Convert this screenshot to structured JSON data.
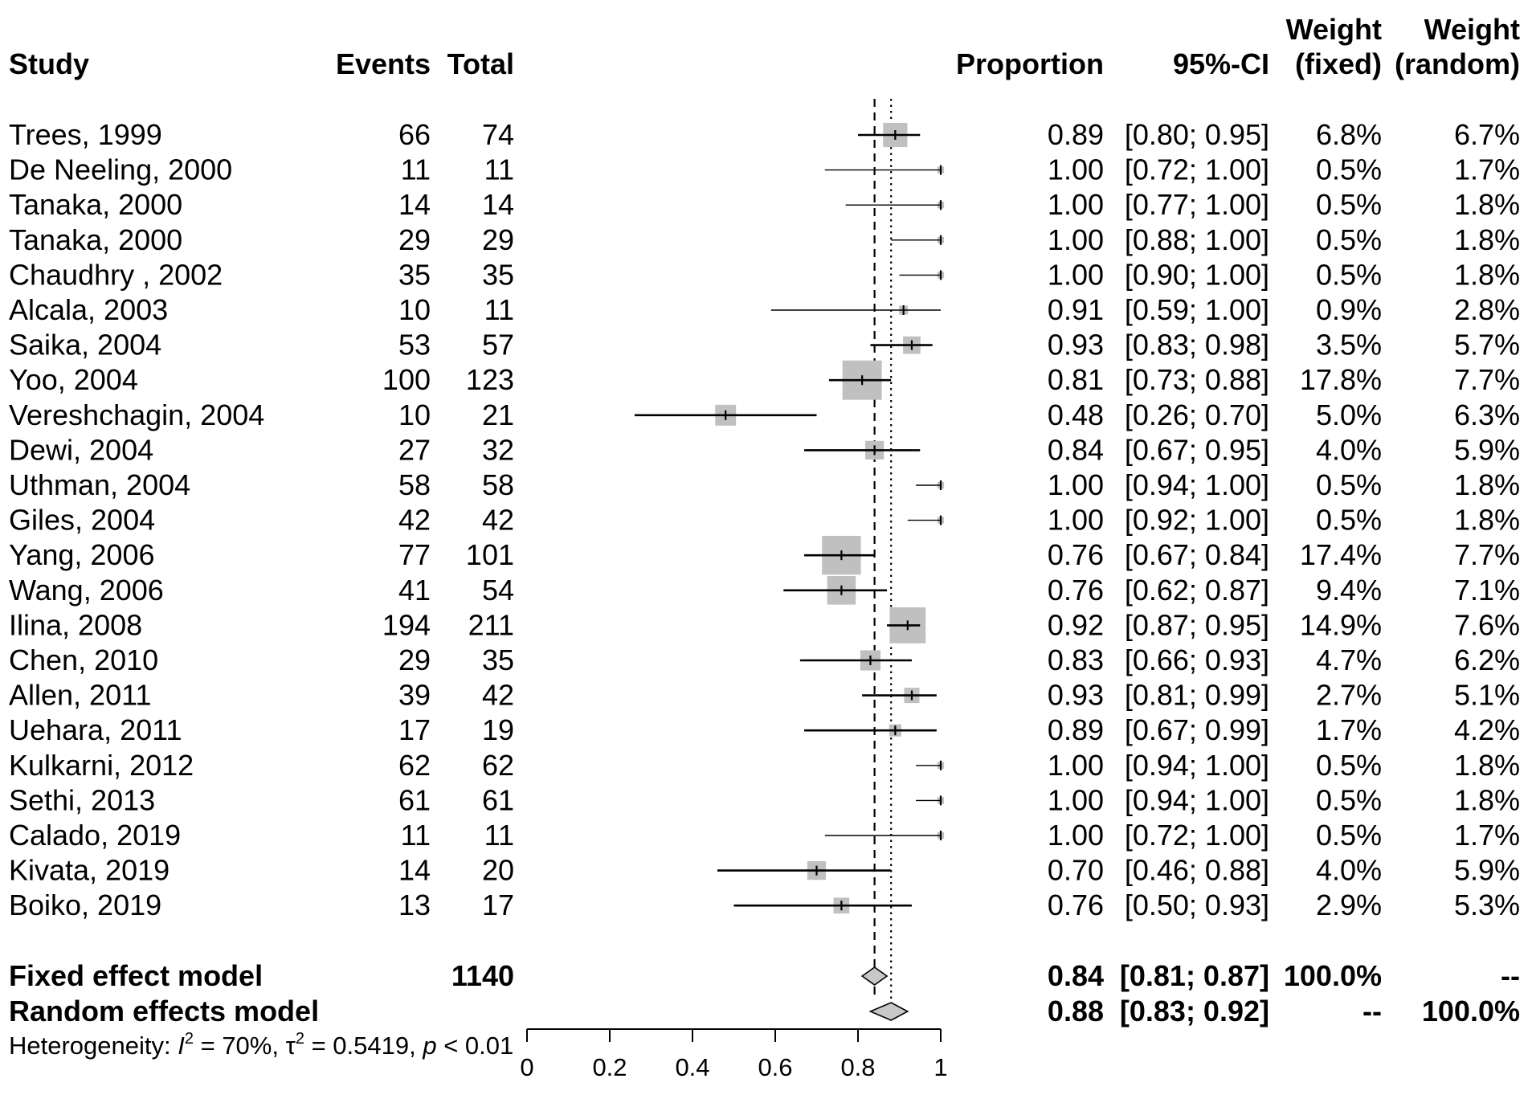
{
  "chart_data": {
    "type": "forest",
    "headers": {
      "study": "Study",
      "events": "Events",
      "total": "Total",
      "proportion": "Proportion",
      "ci": "95%-CI",
      "weight_fixed": [
        "Weight",
        "(fixed)"
      ],
      "weight_random": [
        "Weight",
        "(random)"
      ]
    },
    "studies": [
      {
        "study": "Trees, 1999",
        "events": 66,
        "total": 74,
        "proportion": 0.89,
        "ci_low": 0.8,
        "ci_high": 0.95,
        "prop_text": "0.89",
        "ci_text": "[0.80; 0.95]",
        "w_fixed": "6.8%",
        "w_random": "6.7%"
      },
      {
        "study": "De Neeling, 2000",
        "events": 11,
        "total": 11,
        "proportion": 1.0,
        "ci_low": 0.72,
        "ci_high": 1.0,
        "prop_text": "1.00",
        "ci_text": "[0.72; 1.00]",
        "w_fixed": "0.5%",
        "w_random": "1.7%"
      },
      {
        "study": "Tanaka, 2000",
        "events": 14,
        "total": 14,
        "proportion": 1.0,
        "ci_low": 0.77,
        "ci_high": 1.0,
        "prop_text": "1.00",
        "ci_text": "[0.77; 1.00]",
        "w_fixed": "0.5%",
        "w_random": "1.8%"
      },
      {
        "study": "Tanaka, 2000",
        "events": 29,
        "total": 29,
        "proportion": 1.0,
        "ci_low": 0.88,
        "ci_high": 1.0,
        "prop_text": "1.00",
        "ci_text": "[0.88; 1.00]",
        "w_fixed": "0.5%",
        "w_random": "1.8%"
      },
      {
        "study": "Chaudhry , 2002",
        "events": 35,
        "total": 35,
        "proportion": 1.0,
        "ci_low": 0.9,
        "ci_high": 1.0,
        "prop_text": "1.00",
        "ci_text": "[0.90; 1.00]",
        "w_fixed": "0.5%",
        "w_random": "1.8%"
      },
      {
        "study": "Alcala, 2003",
        "events": 10,
        "total": 11,
        "proportion": 0.91,
        "ci_low": 0.59,
        "ci_high": 1.0,
        "prop_text": "0.91",
        "ci_text": "[0.59; 1.00]",
        "w_fixed": "0.9%",
        "w_random": "2.8%"
      },
      {
        "study": "Saika, 2004",
        "events": 53,
        "total": 57,
        "proportion": 0.93,
        "ci_low": 0.83,
        "ci_high": 0.98,
        "prop_text": "0.93",
        "ci_text": "[0.83; 0.98]",
        "w_fixed": "3.5%",
        "w_random": "5.7%"
      },
      {
        "study": "Yoo, 2004",
        "events": 100,
        "total": 123,
        "proportion": 0.81,
        "ci_low": 0.73,
        "ci_high": 0.88,
        "prop_text": "0.81",
        "ci_text": "[0.73; 0.88]",
        "w_fixed": "17.8%",
        "w_random": "7.7%"
      },
      {
        "study": "Vereshchagin, 2004",
        "events": 10,
        "total": 21,
        "proportion": 0.48,
        "ci_low": 0.26,
        "ci_high": 0.7,
        "prop_text": "0.48",
        "ci_text": "[0.26; 0.70]",
        "w_fixed": "5.0%",
        "w_random": "6.3%"
      },
      {
        "study": "Dewi, 2004",
        "events": 27,
        "total": 32,
        "proportion": 0.84,
        "ci_low": 0.67,
        "ci_high": 0.95,
        "prop_text": "0.84",
        "ci_text": "[0.67; 0.95]",
        "w_fixed": "4.0%",
        "w_random": "5.9%"
      },
      {
        "study": "Uthman, 2004",
        "events": 58,
        "total": 58,
        "proportion": 1.0,
        "ci_low": 0.94,
        "ci_high": 1.0,
        "prop_text": "1.00",
        "ci_text": "[0.94; 1.00]",
        "w_fixed": "0.5%",
        "w_random": "1.8%"
      },
      {
        "study": "Giles, 2004",
        "events": 42,
        "total": 42,
        "proportion": 1.0,
        "ci_low": 0.92,
        "ci_high": 1.0,
        "prop_text": "1.00",
        "ci_text": "[0.92; 1.00]",
        "w_fixed": "0.5%",
        "w_random": "1.8%"
      },
      {
        "study": "Yang, 2006",
        "events": 77,
        "total": 101,
        "proportion": 0.76,
        "ci_low": 0.67,
        "ci_high": 0.84,
        "prop_text": "0.76",
        "ci_text": "[0.67; 0.84]",
        "w_fixed": "17.4%",
        "w_random": "7.7%"
      },
      {
        "study": "Wang, 2006",
        "events": 41,
        "total": 54,
        "proportion": 0.76,
        "ci_low": 0.62,
        "ci_high": 0.87,
        "prop_text": "0.76",
        "ci_text": "[0.62; 0.87]",
        "w_fixed": "9.4%",
        "w_random": "7.1%"
      },
      {
        "study": "Ilina, 2008",
        "events": 194,
        "total": 211,
        "proportion": 0.92,
        "ci_low": 0.87,
        "ci_high": 0.95,
        "prop_text": "0.92",
        "ci_text": "[0.87; 0.95]",
        "w_fixed": "14.9%",
        "w_random": "7.6%"
      },
      {
        "study": "Chen, 2010",
        "events": 29,
        "total": 35,
        "proportion": 0.83,
        "ci_low": 0.66,
        "ci_high": 0.93,
        "prop_text": "0.83",
        "ci_text": "[0.66; 0.93]",
        "w_fixed": "4.7%",
        "w_random": "6.2%"
      },
      {
        "study": "Allen, 2011",
        "events": 39,
        "total": 42,
        "proportion": 0.93,
        "ci_low": 0.81,
        "ci_high": 0.99,
        "prop_text": "0.93",
        "ci_text": "[0.81; 0.99]",
        "w_fixed": "2.7%",
        "w_random": "5.1%"
      },
      {
        "study": "Uehara, 2011",
        "events": 17,
        "total": 19,
        "proportion": 0.89,
        "ci_low": 0.67,
        "ci_high": 0.99,
        "prop_text": "0.89",
        "ci_text": "[0.67; 0.99]",
        "w_fixed": "1.7%",
        "w_random": "4.2%"
      },
      {
        "study": "Kulkarni, 2012",
        "events": 62,
        "total": 62,
        "proportion": 1.0,
        "ci_low": 0.94,
        "ci_high": 1.0,
        "prop_text": "1.00",
        "ci_text": "[0.94; 1.00]",
        "w_fixed": "0.5%",
        "w_random": "1.8%"
      },
      {
        "study": "Sethi, 2013",
        "events": 61,
        "total": 61,
        "proportion": 1.0,
        "ci_low": 0.94,
        "ci_high": 1.0,
        "prop_text": "1.00",
        "ci_text": "[0.94; 1.00]",
        "w_fixed": "0.5%",
        "w_random": "1.8%"
      },
      {
        "study": "Calado, 2019",
        "events": 11,
        "total": 11,
        "proportion": 1.0,
        "ci_low": 0.72,
        "ci_high": 1.0,
        "prop_text": "1.00",
        "ci_text": "[0.72; 1.00]",
        "w_fixed": "0.5%",
        "w_random": "1.7%"
      },
      {
        "study": "Kivata, 2019",
        "events": 14,
        "total": 20,
        "proportion": 0.7,
        "ci_low": 0.46,
        "ci_high": 0.88,
        "prop_text": "0.70",
        "ci_text": "[0.46; 0.88]",
        "w_fixed": "4.0%",
        "w_random": "5.9%"
      },
      {
        "study": "Boiko, 2019",
        "events": 13,
        "total": 17,
        "proportion": 0.76,
        "ci_low": 0.5,
        "ci_high": 0.93,
        "prop_text": "0.76",
        "ci_text": "[0.50; 0.93]",
        "w_fixed": "2.9%",
        "w_random": "5.3%"
      }
    ],
    "summaries": [
      {
        "label": "Fixed effect model",
        "total": "1140",
        "estimate": 0.84,
        "ci_low": 0.81,
        "ci_high": 0.87,
        "prop_text": "0.84",
        "ci_text": "[0.81; 0.87]",
        "w_fixed": "100.0%",
        "w_random": "--",
        "line": "dashed"
      },
      {
        "label": "Random effects model",
        "total": "",
        "estimate": 0.88,
        "ci_low": 0.83,
        "ci_high": 0.92,
        "prop_text": "0.88",
        "ci_text": "[0.83; 0.92]",
        "w_fixed": "--",
        "w_random": "100.0%",
        "line": "dotted"
      }
    ],
    "heterogeneity": {
      "prefix": "Heterogeneity: ",
      "I2_symbol": "I",
      "I2_value": " = 70%, ",
      "tau2_symbol": "τ",
      "tau2_value": " = 0.5419, ",
      "p_symbol": "p",
      "p_value": " < 0.01"
    },
    "x_axis": {
      "range": [
        0,
        1
      ],
      "ticks": [
        0,
        0.2,
        0.4,
        0.6,
        0.8,
        1
      ],
      "tick_labels": [
        "0",
        "0.2",
        "0.4",
        "0.6",
        "0.8",
        "1"
      ]
    },
    "colors": {
      "box": "#c0c0c0",
      "diamond": "#c8c8c8",
      "line": "#000000"
    }
  }
}
